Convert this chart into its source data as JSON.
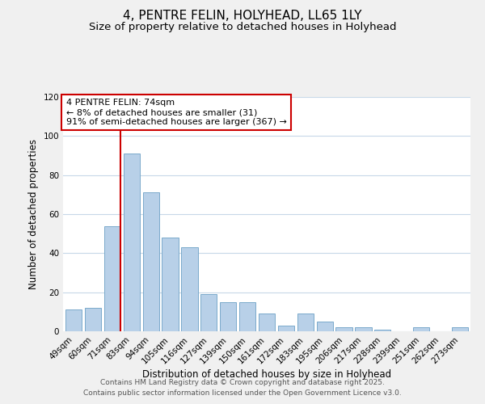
{
  "title": "4, PENTRE FELIN, HOLYHEAD, LL65 1LY",
  "subtitle": "Size of property relative to detached houses in Holyhead",
  "xlabel": "Distribution of detached houses by size in Holyhead",
  "ylabel": "Number of detached properties",
  "categories": [
    "49sqm",
    "60sqm",
    "71sqm",
    "83sqm",
    "94sqm",
    "105sqm",
    "116sqm",
    "127sqm",
    "139sqm",
    "150sqm",
    "161sqm",
    "172sqm",
    "183sqm",
    "195sqm",
    "206sqm",
    "217sqm",
    "228sqm",
    "239sqm",
    "251sqm",
    "262sqm",
    "273sqm"
  ],
  "values": [
    11,
    12,
    54,
    91,
    71,
    48,
    43,
    19,
    15,
    15,
    9,
    3,
    9,
    5,
    2,
    2,
    1,
    0,
    2,
    0,
    2
  ],
  "bar_color": "#b8d0e8",
  "bar_edge_color": "#7aaacb",
  "vline_x_index": 2,
  "vline_color": "#cc0000",
  "ylim": [
    0,
    120
  ],
  "yticks": [
    0,
    20,
    40,
    60,
    80,
    100,
    120
  ],
  "annotation_title": "4 PENTRE FELIN: 74sqm",
  "annotation_line1": "← 8% of detached houses are smaller (31)",
  "annotation_line2": "91% of semi-detached houses are larger (367) →",
  "footer1": "Contains HM Land Registry data © Crown copyright and database right 2025.",
  "footer2": "Contains public sector information licensed under the Open Government Licence v3.0.",
  "background_color": "#f0f0f0",
  "plot_background": "#ffffff",
  "grid_color": "#c8d8e8",
  "title_fontsize": 11,
  "subtitle_fontsize": 9.5,
  "axis_label_fontsize": 8.5,
  "tick_fontsize": 7.5,
  "annotation_fontsize": 8,
  "footer_fontsize": 6.5
}
